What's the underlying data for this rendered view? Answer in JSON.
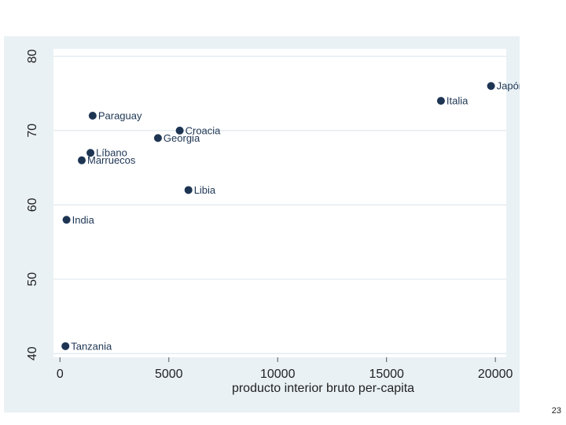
{
  "slide": {
    "number": "23"
  },
  "colors": {
    "panel_background": "#e9f1f5",
    "plot_background": "#ffffff",
    "grid": "#dfe8ee",
    "marker": "#1d3553"
  },
  "chart_data": {
    "type": "scatter",
    "title": "",
    "xlabel": "producto interior bruto per-capita",
    "ylabel": "",
    "xlim": [
      -300,
      20500
    ],
    "ylim": [
      39.5,
      81
    ],
    "xticks": [
      0,
      5000,
      10000,
      15000,
      20000
    ],
    "yticks": [
      40,
      50,
      60,
      70,
      80
    ],
    "grid": true,
    "points": [
      {
        "label": "Japón",
        "x": 19800,
        "y": 76
      },
      {
        "label": "Italia",
        "x": 17500,
        "y": 74
      },
      {
        "label": "Paraguay",
        "x": 1500,
        "y": 72
      },
      {
        "label": "Croacia",
        "x": 5500,
        "y": 70
      },
      {
        "label": "Georgia",
        "x": 4500,
        "y": 69
      },
      {
        "label": "Líbano",
        "x": 1400,
        "y": 67
      },
      {
        "label": "Marruecos",
        "x": 1000,
        "y": 66
      },
      {
        "label": "Libia",
        "x": 5900,
        "y": 62
      },
      {
        "label": "India",
        "x": 300,
        "y": 58
      },
      {
        "label": "Tanzania",
        "x": 250,
        "y": 41
      }
    ]
  }
}
